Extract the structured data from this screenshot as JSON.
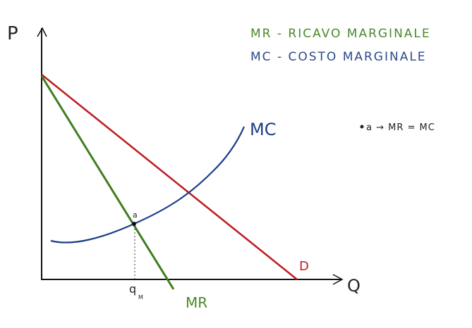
{
  "axes": {
    "y_label": "P",
    "x_label": "Q"
  },
  "legend": [
    {
      "text": "MR - RICAVO MARGINALE"
    },
    {
      "text": "MC - COSTO MARGINALE"
    }
  ],
  "curves": {
    "mc": "MC",
    "mr": "MR",
    "demand": "D"
  },
  "point": {
    "label": "a",
    "note": "a → MR = MC"
  },
  "quantity": {
    "label": "q",
    "subscript": "M"
  }
}
